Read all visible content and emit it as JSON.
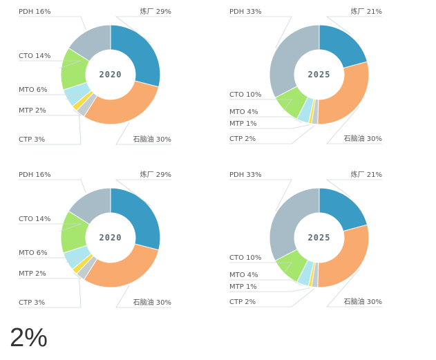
{
  "colors": {
    "炼厂": "#3a9cc4",
    "石脑油": "#f9aa6e",
    "CTP": "#c3cdd0",
    "MTP": "#f5dc4a",
    "MTO": "#aee6f0",
    "CTO": "#a6e66f",
    "PDH": "#a7bcc6"
  },
  "chart_data": [
    {
      "type": "pie",
      "title": "2020",
      "categories": [
        "炼厂",
        "石脑油",
        "CTP",
        "MTP",
        "MTO",
        "CTO",
        "PDH"
      ],
      "values": [
        29,
        30,
        3,
        2,
        6,
        14,
        16
      ],
      "labels": [
        "炼厂 29%",
        "石脑油 30%",
        "CTP 3%",
        "MTP 2%",
        "MTO 6%",
        "CTO 14%",
        "PDH 16%"
      ]
    },
    {
      "type": "pie",
      "title": "2025",
      "categories": [
        "炼厂",
        "石脑油",
        "CTP",
        "MTP",
        "MTO",
        "CTO",
        "PDH"
      ],
      "values": [
        21,
        30,
        2,
        1,
        4,
        10,
        33
      ],
      "labels": [
        "炼厂 21%",
        "石脑油 30%",
        "CTP 2%",
        "MTP 1%",
        "MTO 4%",
        "CTO 10%",
        "PDH 33%"
      ]
    },
    {
      "type": "pie",
      "title": "2020",
      "categories": [
        "炼厂",
        "石脑油",
        "CTP",
        "MTP",
        "MTO",
        "CTO",
        "PDH"
      ],
      "values": [
        29,
        30,
        3,
        2,
        6,
        14,
        16
      ],
      "labels": [
        "炼厂 29%",
        "石脑油 30%",
        "CTP 3%",
        "MTP 2%",
        "MTO 6%",
        "CTO 14%",
        "PDH 16%"
      ]
    },
    {
      "type": "pie",
      "title": "2025",
      "categories": [
        "炼厂",
        "石脑油",
        "CTP",
        "MTP",
        "MTO",
        "CTO",
        "PDH"
      ],
      "values": [
        21,
        30,
        2,
        1,
        4,
        10,
        33
      ],
      "labels": [
        "炼厂 21%",
        "石脑油 30%",
        "CTP 2%",
        "MTP 1%",
        "MTO 4%",
        "CTO 10%",
        "PDH 33%"
      ]
    }
  ],
  "footer_text": "2%"
}
